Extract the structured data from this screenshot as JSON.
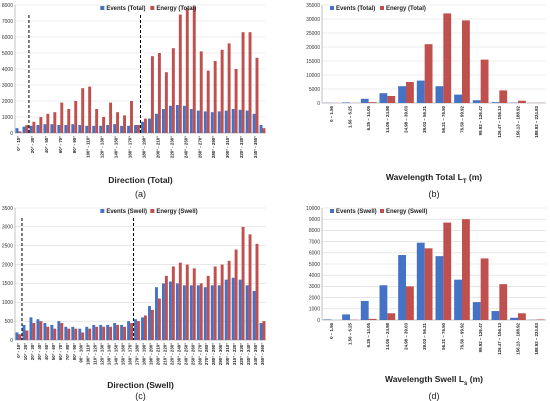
{
  "chart_data": [
    {
      "id": "a",
      "type": "bar",
      "panel_label": "(a)",
      "xlabel": "Direction (Total)",
      "ylim": [
        0,
        8000
      ],
      "yticks": [
        0,
        1000,
        2000,
        3000,
        4000,
        5000,
        6000,
        7000,
        8000
      ],
      "legend": "top-center",
      "grid": true,
      "colors": [
        "#4472c4",
        "#c0504d"
      ],
      "divider_categories": [
        2,
        18
      ],
      "categories": [
        "0°-10°",
        "10°-20°",
        "20°-30°",
        "30°-40°",
        "40°-50°",
        "50°-60°",
        "60°-70°",
        "70°-80°",
        "80°-90°",
        "90°-100°",
        "100°-110°",
        "110°-120°",
        "120°-130°",
        "130°-140°",
        "140°-150°",
        "150°-160°",
        "160°-170°",
        "170°-180°",
        "180°-190°",
        "190°-200°",
        "200°-210°",
        "210°-220°",
        "220°-230°",
        "230°-240°",
        "240°-250°",
        "250°-260°",
        "260°-270°",
        "270°-280°",
        "280°-290°",
        "290°-300°",
        "300°-310°",
        "310°-320°",
        "320°-330°",
        "330°-340°",
        "340°-350°",
        "350°-360°"
      ],
      "xtick_labels": [
        "0° - 10°",
        "20° - 30°",
        "40° - 50°",
        "60° - 70°",
        "80° - 90°",
        "100° - 110°",
        "120° - 130°",
        "140° - 150°",
        "160° - 170°",
        "180° - 190°",
        "200° - 210°",
        "220° - 230°",
        "240° - 250°",
        "260° - 270°",
        "280° - 290°",
        "300° - 310°",
        "320° - 330°",
        "340° - 350°"
      ],
      "series": [
        {
          "name": "Events (Total)",
          "values": [
            300,
            400,
            450,
            500,
            550,
            550,
            500,
            500,
            550,
            500,
            450,
            450,
            450,
            500,
            550,
            450,
            450,
            500,
            700,
            900,
            1200,
            1500,
            1700,
            1750,
            1700,
            1500,
            1400,
            1350,
            1300,
            1350,
            1400,
            1500,
            1450,
            1400,
            1200,
            500
          ]
        },
        {
          "name": "Energy (Total)",
          "values": [
            100,
            500,
            700,
            1000,
            1200,
            1300,
            1900,
            1500,
            2000,
            2800,
            2900,
            1500,
            1000,
            1900,
            1300,
            1100,
            2000,
            500,
            900,
            4800,
            5000,
            3800,
            5300,
            7400,
            7800,
            7900,
            5100,
            3900,
            4500,
            5200,
            5600,
            4000,
            6300,
            6300,
            4700,
            300
          ]
        }
      ]
    },
    {
      "id": "b",
      "type": "bar",
      "panel_label": "(b)",
      "xlabel": "Wavelength Total L",
      "xlabel_sub": "T",
      "xlabel_unit": " (m)",
      "ylim": [
        0,
        35000
      ],
      "yticks": [
        0,
        5000,
        10000,
        15000,
        20000,
        25000,
        30000,
        35000
      ],
      "legend": "top-left",
      "grid": true,
      "colors": [
        "#4472c4",
        "#c0504d"
      ],
      "categories": [
        "0 – 1.56",
        "1.56 – 6.25",
        "6.25 – 14.05",
        "14.05 – 24.98",
        "24.98 – 39.03",
        "39.03 – 56.21",
        "56.21 – 76.50",
        "76.50 – 99.92",
        "99.92 – 126.47",
        "126.47 – 156.13",
        "156.13 – 188.92",
        "188.92 – 224.83"
      ],
      "series": [
        {
          "name": "Events (Total)",
          "values": [
            50,
            200,
            1500,
            3500,
            6000,
            8000,
            6000,
            3000,
            1000,
            300,
            100,
            20
          ]
        },
        {
          "name": "Energy (Total)",
          "values": [
            0,
            20,
            300,
            2500,
            7500,
            21000,
            32000,
            29500,
            15500,
            4500,
            800,
            50
          ]
        }
      ]
    },
    {
      "id": "c",
      "type": "bar",
      "panel_label": "(c)",
      "xlabel": "Direction (Swell)",
      "ylim": [
        0,
        3500
      ],
      "yticks": [
        0,
        500,
        1000,
        1500,
        2000,
        2500,
        3000,
        3500
      ],
      "legend": "top-center",
      "grid": true,
      "colors": [
        "#4472c4",
        "#c0504d"
      ],
      "divider_categories": [
        1,
        17
      ],
      "categories": [
        "0°-10°",
        "10°-20°",
        "20°-30°",
        "30°-40°",
        "40°-50°",
        "50°-60°",
        "60°-70°",
        "70°-80°",
        "80°-90°",
        "90°-100°",
        "100°-110°",
        "110°-120°",
        "120°-130°",
        "130°-140°",
        "140°-150°",
        "150°-160°",
        "160°-170°",
        "170°-180°",
        "180°-190°",
        "190°-200°",
        "200°-210°",
        "210°-220°",
        "220°-230°",
        "230°-240°",
        "240°-250°",
        "250°-260°",
        "260°-270°",
        "270°-280°",
        "280°-290°",
        "290°-300°",
        "300°-310°",
        "310°-320°",
        "320°-330°",
        "330°-340°",
        "340°-350°",
        "350°-360°"
      ],
      "xtick_labels": [
        "0° - 10°",
        "10° - 20°",
        "20° - 30°",
        "30° - 40°",
        "40° - 50°",
        "50° - 60°",
        "60° - 70°",
        "70° - 80°",
        "80° - 90°",
        "90° - 100°",
        "100° - 110°",
        "110° - 120°",
        "120° - 130°",
        "130° - 140°",
        "140° - 150°",
        "150° - 160°",
        "160° - 170°",
        "170° - 180°",
        "180° - 190°",
        "190° - 200°",
        "200° - 210°",
        "210° - 220°",
        "220° - 230°",
        "230° - 240°",
        "240° - 250°",
        "250° - 260°",
        "260° - 270°",
        "270° - 280°",
        "280° - 290°",
        "290° - 300°",
        "300° - 310°",
        "310° - 320°",
        "320° - 330°",
        "330° - 340°",
        "340° - 350°",
        "350° - 360°"
      ],
      "series": [
        {
          "name": "Events (Swell)",
          "values": [
            200,
            400,
            600,
            550,
            450,
            400,
            500,
            350,
            350,
            300,
            350,
            400,
            400,
            400,
            450,
            400,
            500,
            550,
            600,
            900,
            1400,
            1500,
            1550,
            1500,
            1450,
            1450,
            1450,
            1400,
            1450,
            1450,
            1600,
            1650,
            1600,
            1450,
            1300,
            450
          ]
        },
        {
          "name": "Energy (Swell)",
          "values": [
            150,
            250,
            450,
            500,
            350,
            300,
            450,
            300,
            300,
            200,
            300,
            350,
            350,
            350,
            400,
            350,
            450,
            500,
            650,
            800,
            1100,
            1700,
            1950,
            2050,
            2000,
            1900,
            1500,
            1700,
            1950,
            2000,
            2100,
            2400,
            3000,
            2800,
            2550,
            500
          ]
        }
      ]
    },
    {
      "id": "d",
      "type": "bar",
      "panel_label": "(d)",
      "xlabel": "Wavelength Swell L",
      "xlabel_sub": "s",
      "xlabel_unit": " (m)",
      "ylim": [
        0,
        10000
      ],
      "yticks": [
        0,
        1000,
        2000,
        3000,
        4000,
        5000,
        6000,
        7000,
        8000,
        9000,
        10000
      ],
      "legend": "top-left",
      "grid": true,
      "colors": [
        "#4472c4",
        "#c0504d"
      ],
      "categories": [
        "0 – 1.56",
        "1.56 – 6.25",
        "6.25 – 14.05",
        "14.05 – 24.98",
        "24.98 – 39.03",
        "39.03 – 56.21",
        "56.21 – 76.50",
        "76.50 – 99.92",
        "99.92 – 126.47",
        "126.47 – 156.13",
        "156.13 – 188.92",
        "188.92 – 224.83"
      ],
      "series": [
        {
          "name": "Events (Swell)",
          "values": [
            50,
            500,
            1700,
            3100,
            5800,
            6900,
            5700,
            3600,
            1600,
            800,
            200,
            20
          ]
        },
        {
          "name": "Energy (Swell)",
          "values": [
            0,
            20,
            100,
            600,
            3000,
            6400,
            8700,
            9000,
            5500,
            3200,
            600,
            50
          ]
        }
      ]
    }
  ]
}
